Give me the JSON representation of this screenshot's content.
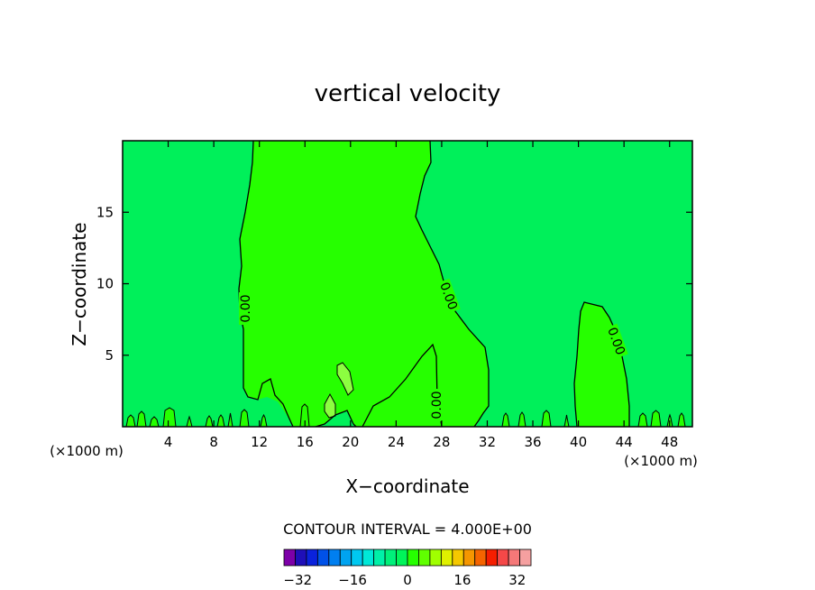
{
  "chart_data": {
    "type": "heatmap",
    "title": "vertical velocity",
    "xlabel": "X−coordinate",
    "ylabel": "Z−coordinate",
    "x_unit_left": "(×1000 m)",
    "x_unit_right": "(×1000 m)",
    "xlim": [
      0,
      50
    ],
    "ylim": [
      0,
      20
    ],
    "x_ticks": [
      4,
      8,
      12,
      16,
      20,
      24,
      28,
      32,
      36,
      40,
      44,
      48
    ],
    "y_ticks": [
      5,
      10,
      15
    ],
    "contour_interval_label": "CONTOUR INTERVAL = 4.000E+00",
    "contour_level": 0,
    "contour_labels": [
      "0.00",
      "0.00",
      "0.00",
      "0.00"
    ],
    "colorbar": {
      "min": -36,
      "max": 36,
      "step": 4,
      "tick_labels": [
        "−32",
        "−16",
        "0",
        "16",
        "32"
      ],
      "tick_values": [
        -32,
        -16,
        0,
        16,
        32
      ],
      "colors": [
        "#7d00a8",
        "#1f0fb8",
        "#0a22dc",
        "#0051e8",
        "#007ff0",
        "#00a3f0",
        "#00c8f0",
        "#00e8d8",
        "#00f0a8",
        "#00f07a",
        "#00f55a",
        "#26ff00",
        "#60ff00",
        "#a0ff00",
        "#e0f000",
        "#f5c800",
        "#f59600",
        "#f56400",
        "#f51e00",
        "#f54848",
        "#f57878",
        "#f5a0a0"
      ]
    },
    "field_colors": {
      "negative_small": "#00f05a",
      "positive_small": "#26ff00",
      "positive_light": "#8cff40"
    }
  }
}
